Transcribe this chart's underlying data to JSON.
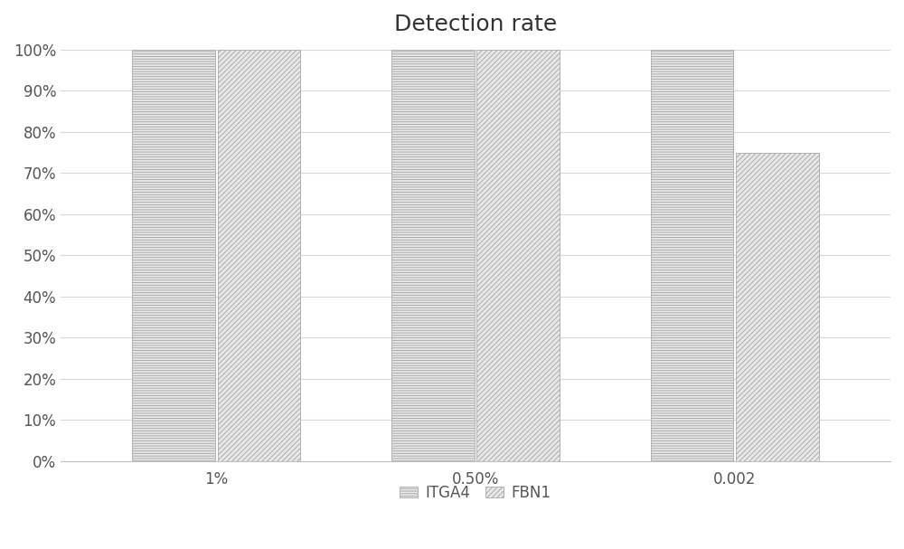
{
  "title": "Detection rate",
  "categories": [
    "1%",
    "0.50%",
    "0.002"
  ],
  "series": {
    "ITGA4": [
      1.0,
      1.0,
      1.0
    ],
    "FBN1": [
      1.0,
      1.0,
      0.75
    ]
  },
  "bar_width": 0.32,
  "group_positions": [
    1,
    2,
    3
  ],
  "ylim": [
    0,
    1.0
  ],
  "yticks": [
    0.0,
    0.1,
    0.2,
    0.3,
    0.4,
    0.5,
    0.6,
    0.7,
    0.8,
    0.9,
    1.0
  ],
  "ytick_labels": [
    "0%",
    "10%",
    "20%",
    "30%",
    "40%",
    "50%",
    "60%",
    "70%",
    "80%",
    "90%",
    "100%"
  ],
  "background_color": "#ffffff",
  "title_fontsize": 18,
  "legend_labels": [
    "ITGA4",
    "FBN1"
  ],
  "grid_color": "#d8d8d8",
  "hatch_color": "#888888",
  "bar_face_color": "#e8e8e8",
  "edge_color": "#aaaaaa"
}
